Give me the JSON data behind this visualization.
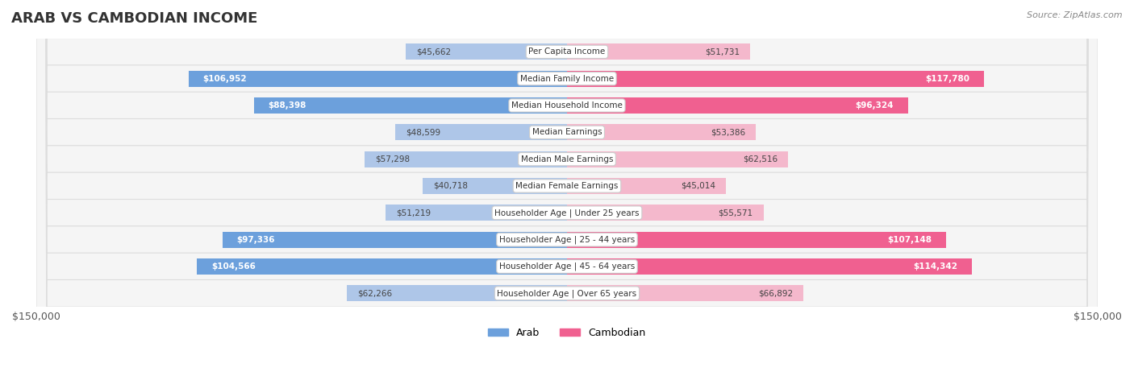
{
  "title": "ARAB VS CAMBODIAN INCOME",
  "source": "Source: ZipAtlas.com",
  "categories": [
    "Per Capita Income",
    "Median Family Income",
    "Median Household Income",
    "Median Earnings",
    "Median Male Earnings",
    "Median Female Earnings",
    "Householder Age | Under 25 years",
    "Householder Age | 25 - 44 years",
    "Householder Age | 45 - 64 years",
    "Householder Age | Over 65 years"
  ],
  "arab_values": [
    45662,
    106952,
    88398,
    48599,
    57298,
    40718,
    51219,
    97336,
    104566,
    62266
  ],
  "cambodian_values": [
    51731,
    117780,
    96324,
    53386,
    62516,
    45014,
    55571,
    107148,
    114342,
    66892
  ],
  "arab_labels": [
    "$45,662",
    "$106,952",
    "$88,398",
    "$48,599",
    "$57,298",
    "$40,718",
    "$51,219",
    "$97,336",
    "$104,566",
    "$62,266"
  ],
  "cambodian_labels": [
    "$51,731",
    "$117,780",
    "$96,324",
    "$53,386",
    "$62,516",
    "$45,014",
    "$55,571",
    "$107,148",
    "$114,342",
    "$66,892"
  ],
  "arab_color_light": "#aec6e8",
  "arab_color_dark": "#6ca0dc",
  "cambodian_color_light": "#f4b8cc",
  "cambodian_color_dark": "#f06090",
  "max_value": 150000,
  "bar_height": 0.6,
  "background_color": "#ffffff",
  "threshold": 70000
}
